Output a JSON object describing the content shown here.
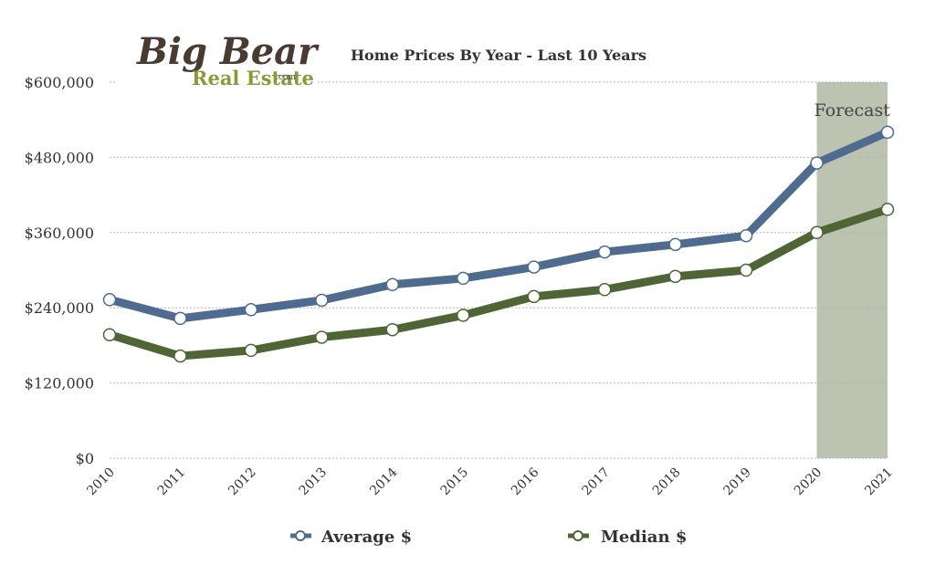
{
  "logo": {
    "line1": "Big Bear",
    "line2": "Real Estate",
    "suffix": ".com"
  },
  "chart_data": {
    "type": "line",
    "title": "Home Prices By Year - Last 10 Years",
    "xlabel": "",
    "ylabel": "",
    "categories": [
      "2010",
      "2011",
      "2012",
      "2013",
      "2014",
      "2015",
      "2016",
      "2017",
      "2018",
      "2019",
      "2020",
      "2021"
    ],
    "y_ticks": [
      "$0",
      "$120,000",
      "$240,000",
      "$360,000",
      "$480,000",
      "$600,000"
    ],
    "y_tick_values": [
      0,
      120000,
      240000,
      360000,
      480000,
      600000
    ],
    "ylim": [
      0,
      600000
    ],
    "grid": "horizontal dotted",
    "legend_position": "bottom",
    "forecast": {
      "label": "Forecast",
      "from": "2020",
      "to": "2021",
      "color": "#bcc3b1"
    },
    "series": [
      {
        "name": "Average $",
        "color": "#4f6b8f",
        "values": [
          253000,
          223000,
          237000,
          252000,
          277000,
          287000,
          305000,
          329000,
          341000,
          355000,
          471000,
          520000
        ]
      },
      {
        "name": "Median $",
        "color": "#506535",
        "values": [
          197000,
          163000,
          172000,
          193000,
          205000,
          228000,
          258000,
          269000,
          290000,
          300000,
          360000,
          397000
        ]
      }
    ]
  }
}
